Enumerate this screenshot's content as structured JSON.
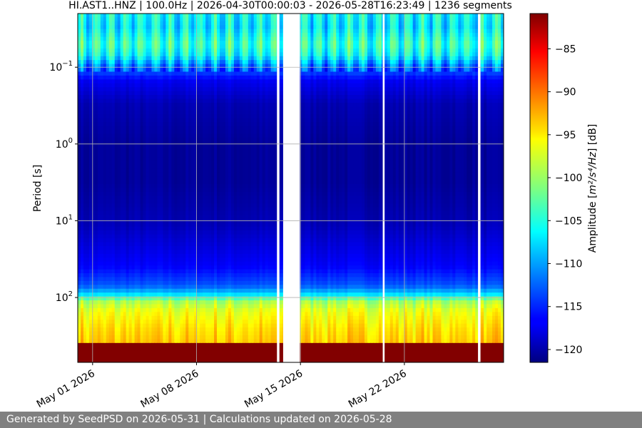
{
  "chart_data": {
    "type": "heatmap",
    "title": "HI.AST1..HNZ | 100.0Hz | 2026-04-30T00:00:03 - 2026-05-28T16:23:49 | 1236 segments",
    "ylabel": "Period [s]",
    "y_scale": "log",
    "y_axis_inverted": true,
    "ylim": [
      0.02,
      700
    ],
    "y_ticks": [
      {
        "value": 0.1,
        "base": "10",
        "exp": "−1"
      },
      {
        "value": 1,
        "base": "10",
        "exp": "0"
      },
      {
        "value": 10,
        "base": "10",
        "exp": "1"
      },
      {
        "value": 100,
        "base": "10",
        "exp": "2"
      }
    ],
    "xlim": [
      "2026-04-30T00:00:03",
      "2026-05-28T16:23:49"
    ],
    "x_ticks": [
      {
        "date": "2026-05-01",
        "label": "May 01 2026"
      },
      {
        "date": "2026-05-08",
        "label": "May 08 2026"
      },
      {
        "date": "2026-05-15",
        "label": "May 15 2026"
      },
      {
        "date": "2026-05-22",
        "label": "May 22 2026"
      }
    ],
    "grid": true,
    "data_gaps": [
      [
        "2026-05-13T10:00:00",
        "2026-05-13T14:00:00"
      ],
      [
        "2026-05-13T20:00:00",
        "2026-05-14T23:00:00"
      ],
      [
        "2026-05-20T13:00:00",
        "2026-05-20T16:00:00"
      ],
      [
        "2026-05-26T23:00:00",
        "2026-05-27T03:00:00"
      ]
    ],
    "colorbar": {
      "label_prefix": "Amplitude [",
      "label_unit": "m²/s⁴/Hz",
      "label_suffix": "] [dB]",
      "colormap": "jet",
      "range": [
        -121.5,
        -80.9
      ],
      "ticks": [
        {
          "value": -85,
          "label": "−85"
        },
        {
          "value": -90,
          "label": "−90"
        },
        {
          "value": -95,
          "label": "−95"
        },
        {
          "value": -100,
          "label": "−100"
        },
        {
          "value": -105,
          "label": "−105"
        },
        {
          "value": -110,
          "label": "−110"
        },
        {
          "value": -115,
          "label": "−115"
        },
        {
          "value": -120,
          "label": "−120"
        }
      ]
    },
    "period_profile_db": [
      {
        "period": 0.02,
        "db": -106
      },
      {
        "period": 0.03,
        "db": -107
      },
      {
        "period": 0.05,
        "db": -104
      },
      {
        "period": 0.07,
        "db": -106
      },
      {
        "period": 0.1,
        "db": -112
      },
      {
        "period": 0.15,
        "db": -117
      },
      {
        "period": 0.3,
        "db": -119.5
      },
      {
        "period": 1,
        "db": -120.5
      },
      {
        "period": 3,
        "db": -120.5
      },
      {
        "period": 10,
        "db": -119.5
      },
      {
        "period": 20,
        "db": -118
      },
      {
        "period": 40,
        "db": -116.5
      },
      {
        "period": 70,
        "db": -113
      },
      {
        "period": 90,
        "db": -108
      },
      {
        "period": 110,
        "db": -100
      },
      {
        "period": 150,
        "db": -97
      },
      {
        "period": 250,
        "db": -95
      },
      {
        "period": 380,
        "db": -94
      },
      {
        "period": 400,
        "db": -81
      },
      {
        "period": 700,
        "db": -81
      }
    ]
  },
  "footer": {
    "text": "Generated by SeedPSD on 2026-05-31 | Calculations updated on 2026-05-28"
  }
}
